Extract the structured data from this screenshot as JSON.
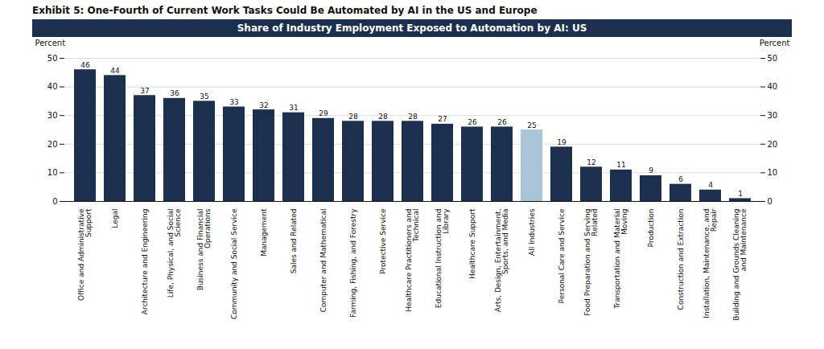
{
  "chart_data": {
    "type": "bar",
    "title": "Exhibit 5: One-Fourth of Current Work Tasks Could Be Automated by AI in the US and Europe",
    "subtitle": "Share of Industry Employment Exposed to Automation by AI: US",
    "categories": [
      "Office and Administrative\nSupport",
      "Legal",
      "Architecture and Engineering",
      "Life, Physical, and Social\nScience",
      "Business and Financial\nOperations",
      "Community and Social Service",
      "Management",
      "Sales and Related",
      "Computer and Mathematical",
      "Farming, Fishing, and Forestry",
      "Protective Service",
      "Healthcare Practitioners and\nTechnical",
      "Educational Instruction and\nLibrary",
      "Healthcare Support",
      "Arts, Design, Entertainment,\nSports, and Media",
      "All Industries",
      "Personal Care and Service",
      "Food Preparation and Serving\nRelated",
      "Transportation and Material\nMoving",
      "Production",
      "Construction and Extraction",
      "Installation, Maintenance, and\nRepair",
      "Building and Grounds Cleaning\nand Maintenance"
    ],
    "values": [
      46,
      44,
      37,
      36,
      35,
      33,
      32,
      31,
      29,
      28,
      28,
      28,
      27,
      26,
      26,
      25,
      19,
      12,
      11,
      9,
      6,
      4,
      1
    ],
    "colors": [
      "#1b2f4e",
      "#1b2f4e",
      "#1b2f4e",
      "#1b2f4e",
      "#1b2f4e",
      "#1b2f4e",
      "#1b2f4e",
      "#1b2f4e",
      "#1b2f4e",
      "#1b2f4e",
      "#1b2f4e",
      "#1b2f4e",
      "#1b2f4e",
      "#1b2f4e",
      "#1b2f4e",
      "#aac4d8",
      "#1b2f4e",
      "#1b2f4e",
      "#1b2f4e",
      "#1b2f4e",
      "#1b2f4e",
      "#1b2f4e",
      "#1b2f4e"
    ],
    "ylabel": "Percent",
    "y2label": "Percent",
    "ylim": [
      0,
      50
    ],
    "yticks": [
      0,
      10,
      20,
      30,
      40,
      50
    ],
    "y2lim": [
      0,
      50
    ],
    "y2ticks": [
      0,
      10,
      20,
      30,
      40,
      50
    ],
    "grid": true,
    "data_labels": true
  }
}
